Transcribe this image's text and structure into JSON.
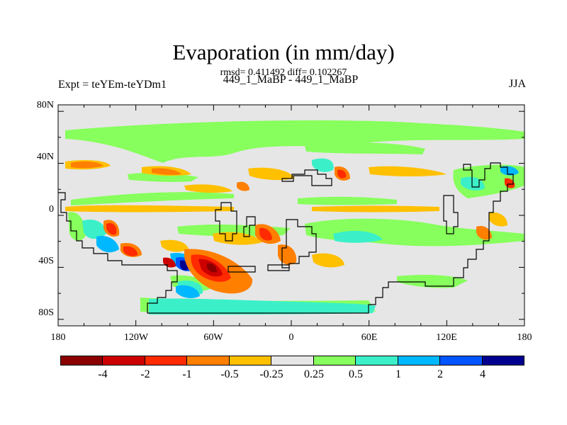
{
  "header": {
    "title": "Evaporation (in mm/day)",
    "stats": "rmsd= 0.411492 diff= 0.102267",
    "left_label": "Expt = teYEm-teYDm1",
    "center_label": "449_1_MaBP - 449_1_MaBP",
    "right_label": "JJA"
  },
  "map": {
    "lat_range": [
      -90,
      90
    ],
    "lon_range": [
      -180,
      180
    ],
    "season": "JJA",
    "y_ticks": [
      "80N",
      "40N",
      "0",
      "40S",
      "80S"
    ],
    "x_ticks": [
      "180",
      "120W",
      "60W",
      "0",
      "60E",
      "120E",
      "180"
    ],
    "background_color": "#e6e6e6",
    "coastline_color": "#000000"
  },
  "colorbar": {
    "colors": [
      "#8b0000",
      "#cd0000",
      "#ff2a00",
      "#ff7f00",
      "#ffc000",
      "#e6e6e6",
      "#87ff5c",
      "#3bf0c8",
      "#00b8ff",
      "#0055ff",
      "#000090"
    ],
    "labels": [
      "-4",
      "-2",
      "-1",
      "-0.5",
      "-0.25",
      "0.25",
      "0.5",
      "1",
      "2",
      "4"
    ]
  }
}
